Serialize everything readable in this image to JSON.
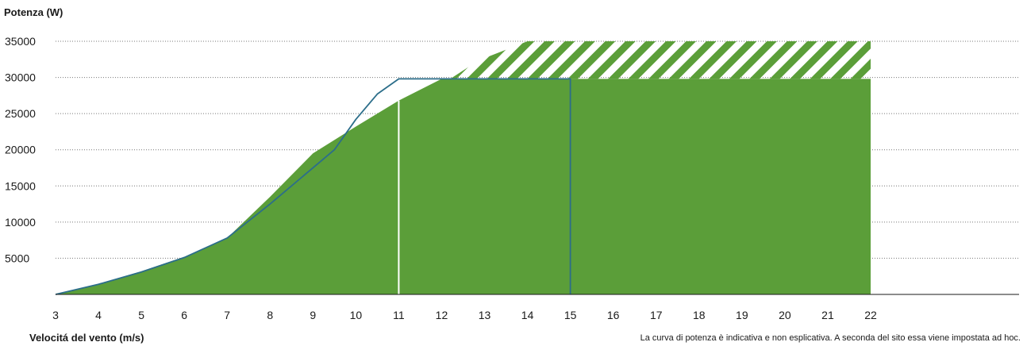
{
  "chart_data": {
    "type": "area",
    "ylabel": "Potenza (W)",
    "xlabel": "Velocitá del vento (m/s)",
    "note": "La curva di potenza è indicativa e non esplicativa. A seconda del sito essa viene impostata ad hoc.",
    "x_ticks": [
      3,
      4,
      5,
      6,
      7,
      8,
      9,
      10,
      11,
      12,
      13,
      14,
      15,
      16,
      17,
      18,
      19,
      20,
      21,
      22
    ],
    "y_ticks": [
      5000,
      10000,
      15000,
      20000,
      25000,
      30000,
      35000
    ],
    "ylim": [
      0,
      35000
    ],
    "grid": "horizontal dotted",
    "colors": {
      "area": "#5b9e39",
      "line": "#2c6e8a",
      "marker_white": "#ffffff",
      "axis": "#1a1a1a",
      "grid": "#777777"
    },
    "series": [
      {
        "kind": "area",
        "points": [
          [
            3,
            0
          ],
          [
            4,
            1450
          ],
          [
            5,
            3200
          ],
          [
            6,
            5200
          ],
          [
            7,
            7800
          ],
          [
            8,
            13500
          ],
          [
            9,
            19500
          ],
          [
            10,
            23200
          ],
          [
            11,
            26800
          ],
          [
            12,
            29800
          ],
          [
            22,
            29800
          ]
        ],
        "hatched_extension": {
          "from_x": 12.2,
          "ceiling_y": 35000
        }
      },
      {
        "kind": "line",
        "points": [
          [
            3,
            0
          ],
          [
            4,
            1400
          ],
          [
            5,
            3100
          ],
          [
            6,
            5100
          ],
          [
            7,
            7800
          ],
          [
            8,
            12500
          ],
          [
            9,
            17500
          ],
          [
            9.5,
            20000
          ],
          [
            10,
            24200
          ],
          [
            10.5,
            27700
          ],
          [
            11,
            29800
          ],
          [
            15,
            29800
          ],
          [
            15,
            0
          ]
        ]
      }
    ],
    "markers": [
      {
        "x": 11,
        "y_top": 26800,
        "color": "#ffffff"
      }
    ]
  }
}
